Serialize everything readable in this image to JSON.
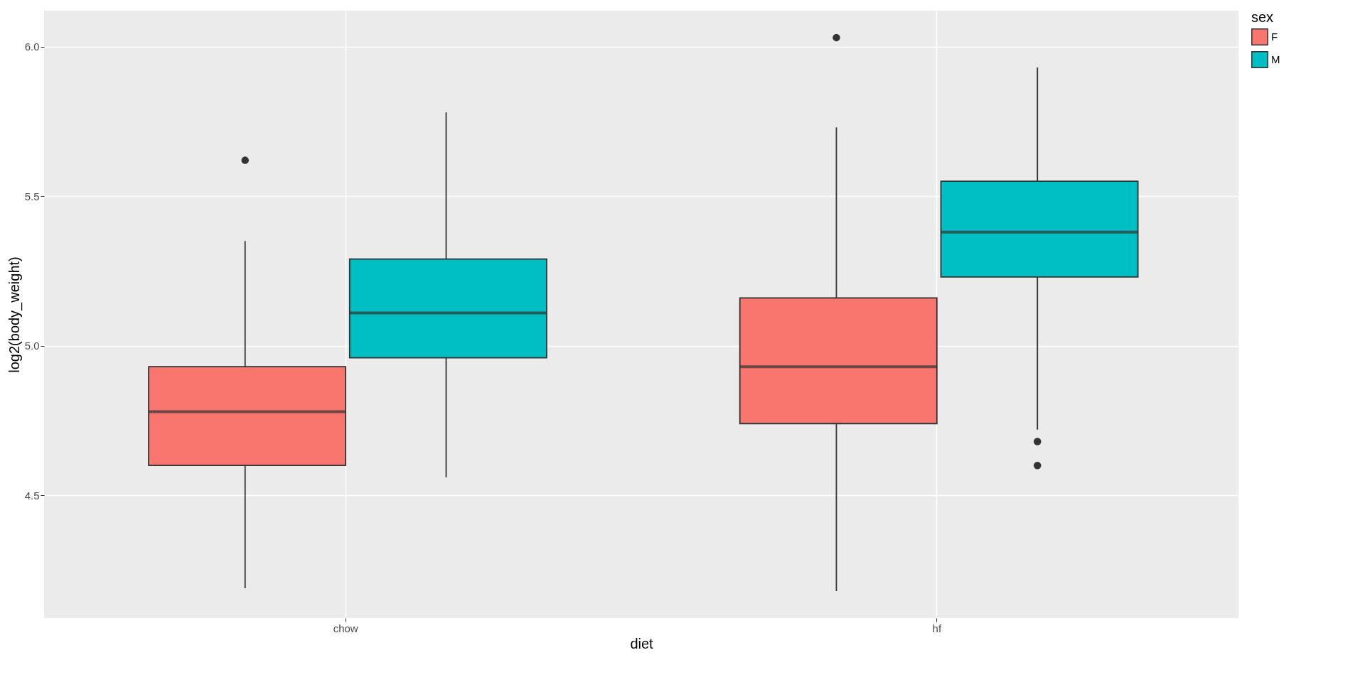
{
  "chart_data": {
    "type": "box",
    "xlabel": "diet",
    "ylabel": "log2(body_weight)",
    "legend_title": "sex",
    "categories": [
      "chow",
      "hf"
    ],
    "ylim": [
      4.09,
      6.12
    ],
    "yticks": [
      4.5,
      {
        "value": 5,
        "label": "5.0"
      },
      5.5,
      {
        "value": 6,
        "label": "6.0"
      }
    ],
    "grid": true,
    "legend": "right",
    "series": [
      {
        "name": "F",
        "color": "#f8766d",
        "boxes": [
          {
            "low": 4.19,
            "q1": 4.6,
            "median": 4.78,
            "q3": 4.93,
            "high": 5.35,
            "outliers": [
              5.62
            ]
          },
          {
            "low": 4.18,
            "q1": 4.74,
            "median": 4.93,
            "q3": 5.16,
            "high": 5.73,
            "outliers": [
              6.03
            ]
          }
        ]
      },
      {
        "name": "M",
        "color": "#00bfc4",
        "boxes": [
          {
            "low": 4.56,
            "q1": 4.96,
            "median": 5.11,
            "q3": 5.29,
            "high": 5.78
          },
          {
            "low": 4.72,
            "q1": 5.23,
            "median": 5.38,
            "q3": 5.55,
            "high": 5.93,
            "outliers": [
              4.68,
              4.6
            ]
          }
        ]
      }
    ]
  }
}
